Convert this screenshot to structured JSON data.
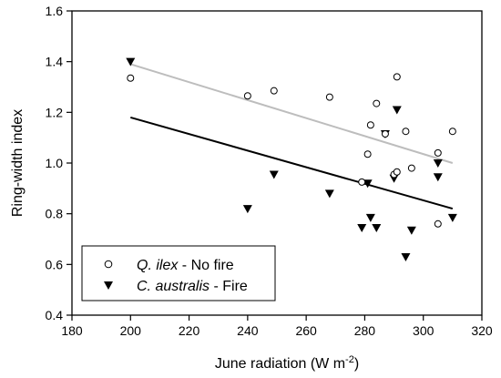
{
  "chart_data": {
    "type": "scatter",
    "xlabel": {
      "main": "June radiation (W m",
      "sup": "-2",
      "close": ")"
    },
    "ylabel": "Ring-width index",
    "xlim": [
      180,
      320
    ],
    "ylim": [
      0.4,
      1.6
    ],
    "x_ticks": [
      180,
      200,
      220,
      240,
      260,
      280,
      300,
      320
    ],
    "x_tick_labels": [
      "180",
      "200",
      "220",
      "240",
      "260",
      "280",
      "300",
      "320"
    ],
    "y_ticks": [
      0.4,
      0.6,
      0.8,
      1.0,
      1.2,
      1.4,
      1.6
    ],
    "y_tick_labels": [
      "0.4",
      "0.6",
      "0.8",
      "1.0",
      "1.2",
      "1.4",
      "1.6"
    ],
    "legend_position": "bottom-left",
    "series": [
      {
        "name": "Q. ilex - No fire",
        "legend_italic": "Q. ilex",
        "legend_rest": " - No fire",
        "marker": "open-circle",
        "line_color": "#bdbdbd",
        "fit": [
          [
            200,
            1.39
          ],
          [
            310,
            1.0
          ]
        ],
        "points": [
          [
            200,
            1.335
          ],
          [
            240,
            1.265
          ],
          [
            249,
            1.285
          ],
          [
            268,
            1.26
          ],
          [
            279,
            0.925
          ],
          [
            281,
            1.035
          ],
          [
            282,
            1.15
          ],
          [
            284,
            1.235
          ],
          [
            287,
            1.115
          ],
          [
            290,
            0.955
          ],
          [
            291,
            0.965
          ],
          [
            291,
            1.34
          ],
          [
            294,
            1.125
          ],
          [
            296,
            0.98
          ],
          [
            305,
            0.76
          ],
          [
            305,
            1.04
          ],
          [
            310,
            1.125
          ]
        ]
      },
      {
        "name": "C. australis - Fire",
        "legend_italic": "C. australis",
        "legend_rest": " - Fire",
        "marker": "filled-down-triangle",
        "line_color": "#000000",
        "fit": [
          [
            200,
            1.18
          ],
          [
            310,
            0.82
          ]
        ],
        "points": [
          [
            200,
            1.4
          ],
          [
            240,
            0.82
          ],
          [
            249,
            0.955
          ],
          [
            268,
            0.88
          ],
          [
            279,
            0.745
          ],
          [
            281,
            0.92
          ],
          [
            282,
            0.785
          ],
          [
            284,
            0.745
          ],
          [
            287,
            1.115
          ],
          [
            290,
            0.94
          ],
          [
            291,
            1.21
          ],
          [
            294,
            0.63
          ],
          [
            296,
            0.735
          ],
          [
            305,
            1.0
          ],
          [
            305,
            0.945
          ],
          [
            310,
            0.785
          ]
        ]
      }
    ]
  }
}
